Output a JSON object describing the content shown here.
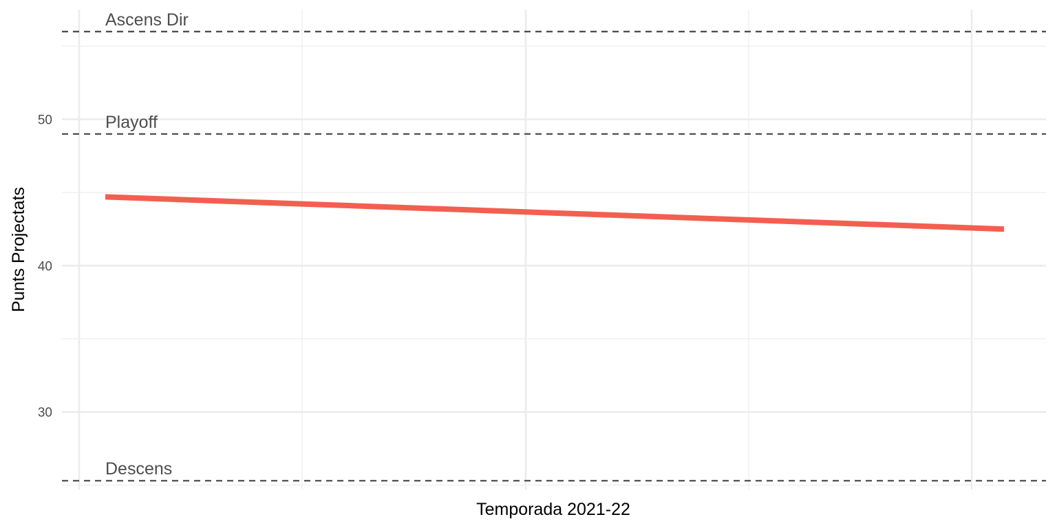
{
  "chart_data": {
    "type": "line",
    "title": "",
    "xlabel": "Temporada 2021-22",
    "ylabel": "Punts Projectats",
    "ylim": [
      24.7,
      57.5
    ],
    "yticks": [
      30,
      40,
      50
    ],
    "grid": true,
    "series": [
      {
        "values": [
          44.7,
          42.5
        ],
        "color": "#f25f50"
      }
    ],
    "reference_lines": [
      {
        "label": "Ascens Dir",
        "y": 56
      },
      {
        "label": "Playoff",
        "y": 49
      },
      {
        "label": "Descens",
        "y": 25.3
      }
    ]
  }
}
